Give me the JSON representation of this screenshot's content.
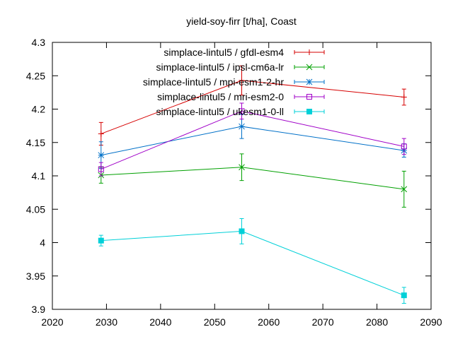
{
  "chart_data": {
    "type": "line",
    "title": "yield-soy-firr [t/ha], Coast",
    "xlabel": "",
    "ylabel": "",
    "xlim": [
      2020,
      2090
    ],
    "ylim": [
      3.9,
      4.3
    ],
    "xticks": [
      2020,
      2030,
      2040,
      2050,
      2060,
      2070,
      2080,
      2090
    ],
    "yticks": [
      3.9,
      3.95,
      4,
      4.05,
      4.1,
      4.15,
      4.2,
      4.25,
      4.3
    ],
    "ytick_labels": [
      "3.9",
      "3.95",
      "4",
      "4.05",
      "4.1",
      "4.15",
      "4.2",
      "4.25",
      "4.3"
    ],
    "grid": false,
    "legend_position": "top-right",
    "x": [
      2029,
      2055,
      2085
    ],
    "series": [
      {
        "name": "simplace-lintul5 / gfdl-esm4",
        "color": "#d60000",
        "marker": "plus",
        "values": [
          4.163,
          4.243,
          4.218
        ],
        "errors": [
          0.017,
          0.022,
          0.012
        ]
      },
      {
        "name": "simplace-lintul5 / ipsl-cm6a-lr",
        "color": "#00a000",
        "marker": "cross",
        "values": [
          4.101,
          4.113,
          4.08
        ],
        "errors": [
          0.012,
          0.02,
          0.027
        ]
      },
      {
        "name": "simplace-lintul5 / mpi-esm1-2-hr",
        "color": "#0070c8",
        "marker": "star",
        "values": [
          4.131,
          4.174,
          4.138
        ],
        "errors": [
          0.02,
          0.018,
          0.01
        ]
      },
      {
        "name": "simplace-lintul5 / mri-esm2-0",
        "color": "#a000c8",
        "marker": "open-square",
        "values": [
          4.11,
          4.197,
          4.144
        ],
        "errors": [
          0.01,
          0.012,
          0.012
        ]
      },
      {
        "name": "simplace-lintul5 / ukesm1-0-ll",
        "color": "#00d0d8",
        "marker": "filled-square",
        "values": [
          4.003,
          4.017,
          3.921
        ],
        "errors": [
          0.008,
          0.019,
          0.012
        ]
      }
    ]
  }
}
